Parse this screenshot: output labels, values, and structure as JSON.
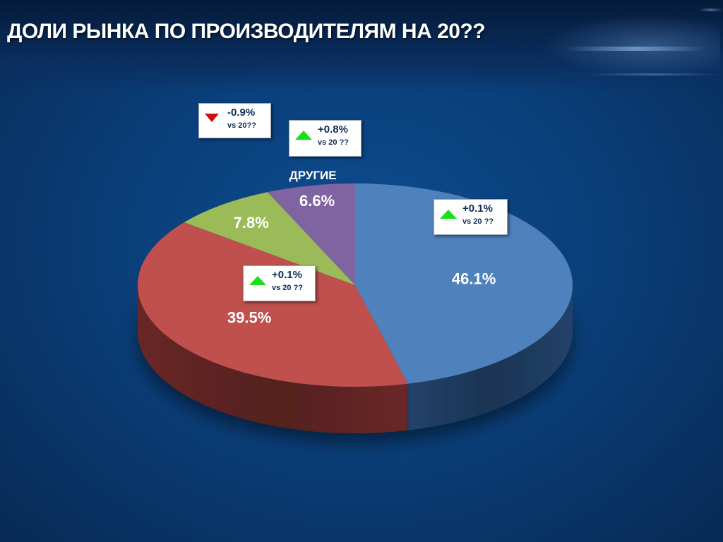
{
  "title": "ДОЛИ РЫНКА ПО ПРОИЗВОДИТЕЛЯМ НА 20??",
  "chart_data": {
    "type": "pie",
    "title": "",
    "three_d": true,
    "series": [
      {
        "name": "",
        "value": 46.1,
        "label": "46.1%",
        "color": "#4f81bd",
        "side": "#24456f"
      },
      {
        "name": "",
        "value": 39.5,
        "label": "39.5%",
        "color": "#c0504d",
        "side": "#6f2a28"
      },
      {
        "name": "",
        "value": 7.8,
        "label": "7.8%",
        "color": "#9bbb59",
        "side": "#5b7132"
      },
      {
        "name": "ДРУГИЕ",
        "value": 6.6,
        "label": "6.6%",
        "color": "#8064a2",
        "side": "#4c3a63"
      }
    ]
  },
  "callouts": [
    {
      "id": "others",
      "change": "-0.9%",
      "vs": "vs 20??",
      "trend": "down"
    },
    {
      "id": "green",
      "change": "+0.8%",
      "vs": "vs 20 ??",
      "trend": "up"
    },
    {
      "id": "blue",
      "change": "+0.1%",
      "vs": "vs 20 ??",
      "trend": "up"
    },
    {
      "id": "red",
      "change": "+0.1%",
      "vs": "vs 20 ??",
      "trend": "up"
    }
  ],
  "colors": {
    "up_arrow": "#19e119",
    "down_arrow": "#d10f0f"
  }
}
